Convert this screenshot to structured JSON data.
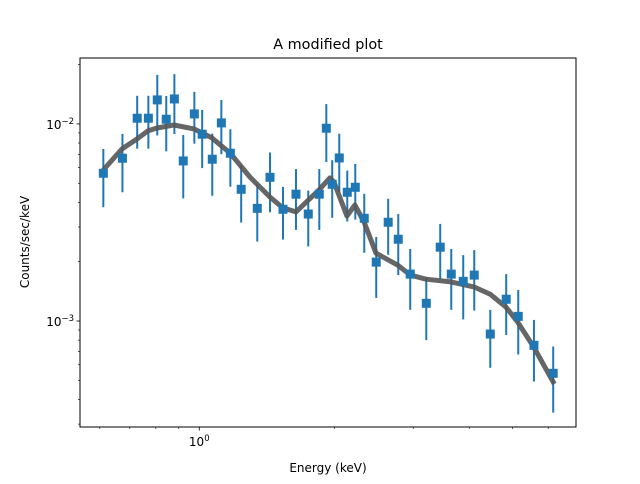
{
  "chart_data": {
    "type": "scatter",
    "title": "A modified plot",
    "xlabel": "Energy (keV)",
    "ylabel": "Counts/sec/keV",
    "xscale": "log",
    "yscale": "log",
    "xlim": [
      0.542,
      6.92
    ],
    "ylim": [
      0.00029,
      0.0216
    ],
    "grid": false,
    "x_tick_labels": [
      {
        "value": 1,
        "base": "10",
        "exp": "0"
      }
    ],
    "y_tick_labels": [
      {
        "value": 0.01,
        "base": "10",
        "exp": "−2"
      },
      {
        "value": 0.001,
        "base": "10",
        "exp": "−3"
      }
    ],
    "marker_color": "#1f77b4",
    "model_color": "#555555",
    "data": {
      "x": [
        0.611,
        0.674,
        0.727,
        0.77,
        0.806,
        0.844,
        0.88,
        0.921,
        0.975,
        1.015,
        1.069,
        1.12,
        1.173,
        1.24,
        1.347,
        1.438,
        1.537,
        1.643,
        1.75,
        1.852,
        1.92,
        1.979,
        2.052,
        2.138,
        2.228,
        2.333,
        2.481,
        2.638,
        2.778,
        2.954,
        3.208,
        3.446,
        3.647,
        3.878,
        4.104,
        4.456,
        4.836,
        5.144,
        5.576,
        6.156
      ],
      "y": [
        0.00562,
        0.0067,
        0.01069,
        0.01069,
        0.01324,
        0.01056,
        0.01339,
        0.00649,
        0.01124,
        0.00887,
        0.00662,
        0.01012,
        0.0071,
        0.00466,
        0.00373,
        0.00536,
        0.00369,
        0.0044,
        0.00349,
        0.0044,
        0.00951,
        0.00494,
        0.00672,
        0.0045,
        0.00477,
        0.00332,
        0.00199,
        0.00317,
        0.0026,
        0.00173,
        0.00123,
        0.00237,
        0.00173,
        0.00159,
        0.00171,
        0.000859,
        0.00129,
        0.001056,
        0.000753,
        0.000543
      ],
      "yerr": [
        0.00184,
        0.0022,
        0.0032,
        0.0032,
        0.0045,
        0.0033,
        0.0045,
        0.0023,
        0.0033,
        0.0029,
        0.0023,
        0.0031,
        0.0023,
        0.0015,
        0.0012,
        0.0018,
        0.0011,
        0.0015,
        0.0011,
        0.0015,
        0.0031,
        0.0016,
        0.0022,
        0.0013,
        0.0015,
        0.0011,
        0.00068,
        0.001,
        0.00089,
        0.00059,
        0.00043,
        0.00074,
        0.00059,
        0.00057,
        0.00058,
        0.00028,
        0.00044,
        0.00038,
        0.00026,
        0.0002
      ]
    },
    "model": {
      "x": [
        0.611,
        0.672,
        0.726,
        0.768,
        0.805,
        0.878,
        0.973,
        1.014,
        1.067,
        1.171,
        1.297,
        1.437,
        1.536,
        1.643,
        1.848,
        1.955,
        1.996,
        2.134,
        2.224,
        2.331,
        2.478,
        2.772,
        2.955,
        3.203,
        3.642,
        4.096,
        4.45,
        4.825,
        5.131,
        5.568,
        6.19
      ],
      "y": [
        0.00584,
        0.00746,
        0.00839,
        0.00922,
        0.00954,
        0.00988,
        0.00943,
        0.009,
        0.00849,
        0.00712,
        0.00538,
        0.00426,
        0.00375,
        0.00358,
        0.00462,
        0.00532,
        0.00508,
        0.00341,
        0.00388,
        0.00318,
        0.00221,
        0.00192,
        0.00171,
        0.00163,
        0.00158,
        0.00149,
        0.00137,
        0.00118,
        0.000988,
        0.000738,
        0.000479
      ]
    }
  }
}
